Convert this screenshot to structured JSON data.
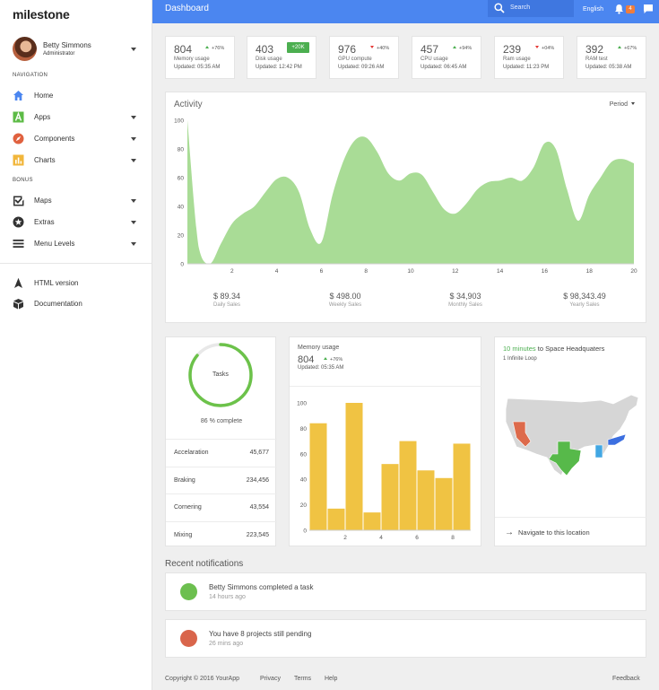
{
  "app": {
    "logo_bold": "mile",
    "logo_rest": "stone"
  },
  "user": {
    "name": "Betty Simmons",
    "role": "Administrator"
  },
  "sidebar": {
    "nav_heading": "NAVIGATION",
    "bonus_heading": "BONUS",
    "items": [
      {
        "label": "Home",
        "icon": "home-icon"
      },
      {
        "label": "Apps",
        "icon": "apps-icon"
      },
      {
        "label": "Components",
        "icon": "compass-icon"
      },
      {
        "label": "Charts",
        "icon": "charts-icon"
      },
      {
        "label": "Maps",
        "icon": "map-check-icon"
      },
      {
        "label": "Extras",
        "icon": "star-icon"
      },
      {
        "label": "Menu Levels",
        "icon": "menu-icon"
      },
      {
        "label": "HTML version",
        "icon": "navigation-arrow-icon"
      },
      {
        "label": "Documentation",
        "icon": "box-icon"
      }
    ]
  },
  "topbar": {
    "title": "Dashboard",
    "search_placeholder": "Search",
    "language": "English",
    "notification_count": "4"
  },
  "stats": [
    {
      "value": "804",
      "delta": "+76%",
      "dir": "up",
      "label": "Memory usage",
      "updated": "Updated: 05:35 AM"
    },
    {
      "value": "403",
      "badge": "+20K",
      "label": "Disk usage",
      "updated": "Updated: 12:42 PM"
    },
    {
      "value": "976",
      "delta": "+40%",
      "dir": "down",
      "label": "GPU compute",
      "updated": "Updated: 09:26 AM"
    },
    {
      "value": "457",
      "delta": "+94%",
      "dir": "up",
      "label": "CPU usage",
      "updated": "Updated: 06:45 AM"
    },
    {
      "value": "239",
      "delta": "+04%",
      "dir": "down",
      "label": "Ram usage",
      "updated": "Updated: 11:23 PM"
    },
    {
      "value": "392",
      "delta": "+67%",
      "dir": "up",
      "label": "RAM test",
      "updated": "Updated: 05:38 AM"
    }
  ],
  "activity": {
    "title": "Activity",
    "period_label": "Period",
    "sales": [
      {
        "value": "$ 89.34",
        "label": "Daily Sales"
      },
      {
        "value": "$ 498.00",
        "label": "Weekly Sales"
      },
      {
        "value": "$ 34,903",
        "label": "Monthly Sales"
      },
      {
        "value": "$ 98,343.49",
        "label": "Yearly Sales"
      }
    ]
  },
  "tasks": {
    "label": "Tasks",
    "complete_text": "86 % complete",
    "percent": 86,
    "rows": [
      {
        "label": "Accelaration",
        "value": "45,677"
      },
      {
        "label": "Braking",
        "value": "234,456"
      },
      {
        "label": "Cornering",
        "value": "43,554"
      },
      {
        "label": "Mixing",
        "value": "223,545"
      }
    ]
  },
  "memory": {
    "title": "Memory usage",
    "value": "804",
    "delta": "+76%",
    "updated": "Updated: 05:35 AM"
  },
  "map": {
    "minutes": "10 minutes",
    "destination": "to Space Headquaters",
    "address": "1 Infinite Loop",
    "nav_label": "Navigate to this location"
  },
  "notifications": {
    "title": "Recent notifications",
    "items": [
      {
        "text": "Betty Simmons completed a task",
        "time": "14 hours ago",
        "color": "#6cbf4f"
      },
      {
        "text": "You have 8 projects still pending",
        "time": "26 mins ago",
        "color": "#d9654b"
      }
    ]
  },
  "footer": {
    "copyright": "Copyright © 2016 YourApp",
    "privacy": "Privacy",
    "terms": "Terms",
    "help": "Help",
    "feedback": "Feedback"
  },
  "colors": {
    "accent": "#4b86f0",
    "green": "#4caf50",
    "area": "#a9dc96",
    "bars": "#f0c343"
  },
  "chart_data": [
    {
      "type": "area",
      "title": "Activity",
      "x": [
        0,
        0.5,
        1,
        1.5,
        2,
        2.5,
        3,
        3.5,
        4,
        4.5,
        5,
        5.5,
        6,
        6.5,
        7,
        7.5,
        8,
        8.5,
        9,
        9.5,
        10,
        10.5,
        11,
        11.5,
        12,
        12.5,
        13,
        13.5,
        14,
        14.5,
        15,
        15.5,
        16,
        16.5,
        17,
        17.5,
        18,
        18.5,
        19,
        19.5,
        20
      ],
      "values": [
        100,
        12,
        0,
        14,
        28,
        35,
        40,
        50,
        59,
        60,
        50,
        24,
        15,
        48,
        72,
        86,
        88,
        78,
        63,
        58,
        63,
        62,
        50,
        38,
        35,
        42,
        52,
        57,
        58,
        60,
        58,
        67,
        84,
        80,
        52,
        30,
        48,
        60,
        71,
        73,
        70
      ],
      "xticks": [
        2,
        4,
        6,
        8,
        10,
        12,
        14,
        16,
        18,
        20
      ],
      "yticks": [
        0,
        20,
        40,
        60,
        80,
        100
      ],
      "xlim": [
        0,
        20
      ],
      "ylim": [
        0,
        100
      ]
    },
    {
      "type": "bar",
      "title": "Memory usage",
      "x": [
        0,
        1,
        2,
        3,
        4,
        5,
        6,
        7,
        8
      ],
      "values": [
        84,
        17,
        100,
        14,
        52,
        70,
        47,
        41,
        68
      ],
      "xticks": [
        2,
        4,
        6,
        8
      ],
      "yticks": [
        0,
        20,
        40,
        60,
        80,
        100
      ],
      "ylim": [
        0,
        100
      ]
    }
  ]
}
